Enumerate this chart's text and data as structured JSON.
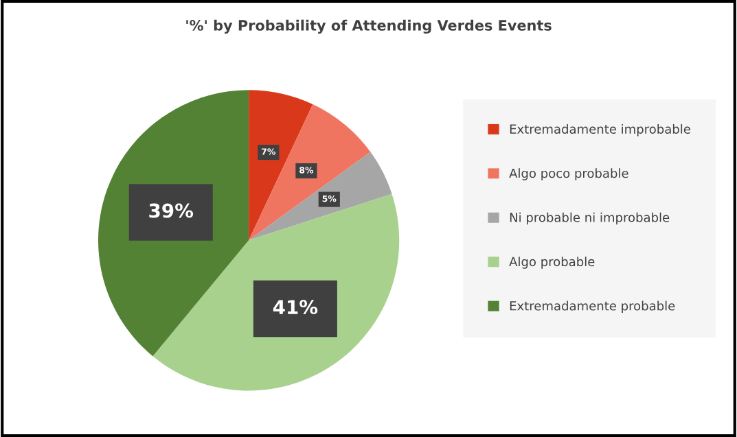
{
  "chart_data": {
    "type": "pie",
    "title": "'%' by Probability of Attending Verdes Events",
    "categories": [
      "Extremadamente improbable",
      "Algo poco probable",
      "Ni probable ni improbable",
      "Algo probable",
      "Extremadamente probable"
    ],
    "values": [
      7,
      8,
      5,
      41,
      39
    ],
    "colors": [
      "#d9391a",
      "#f07561",
      "#a6a6a6",
      "#a9d18e",
      "#548235"
    ],
    "value_labels": [
      "7%",
      "8%",
      "5%",
      "41%",
      "39%"
    ],
    "legend": "right"
  }
}
